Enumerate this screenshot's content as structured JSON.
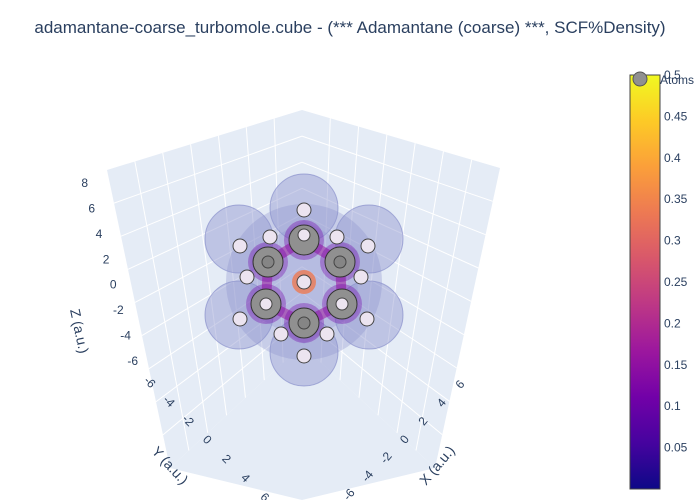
{
  "chart_data": {
    "type": "isosurface-3d",
    "title": "adamantane-coarse_turbomole.cube - (*** Adamantane (coarse) ***, SCF%Density)",
    "x_axis": {
      "label": "X (a.u.)",
      "ticks": [
        "-6",
        "-4",
        "-2",
        "0",
        "2",
        "4",
        "6"
      ]
    },
    "y_axis": {
      "label": "Y (a.u.)",
      "ticks": [
        "-6",
        "-4",
        "-2",
        "0",
        "2",
        "4",
        "6"
      ]
    },
    "z_axis": {
      "label": "Z (a.u.)",
      "ticks": [
        "-6",
        "-4",
        "-2",
        "0",
        "2",
        "4",
        "6",
        "8"
      ]
    },
    "colorbar": {
      "min": 0,
      "max": 0.5,
      "ticks": [
        "0.05",
        "0.1",
        "0.15",
        "0.2",
        "0.25",
        "0.3",
        "0.35",
        "0.4",
        "0.45",
        "0.5"
      ],
      "colors": [
        "#0d0887",
        "#46039f",
        "#7201a8",
        "#9c179e",
        "#bd3786",
        "#d8576b",
        "#ed7953",
        "#fb9f3a",
        "#fdca26",
        "#f0f921"
      ]
    },
    "legend": {
      "label": "Atoms"
    },
    "colors": {
      "scene_bg": "#e5ecf6",
      "grid": "#ffffff",
      "isosurface": "#8f94cf",
      "carbon": "#909090",
      "hydrogen": "#ece4f0"
    }
  }
}
